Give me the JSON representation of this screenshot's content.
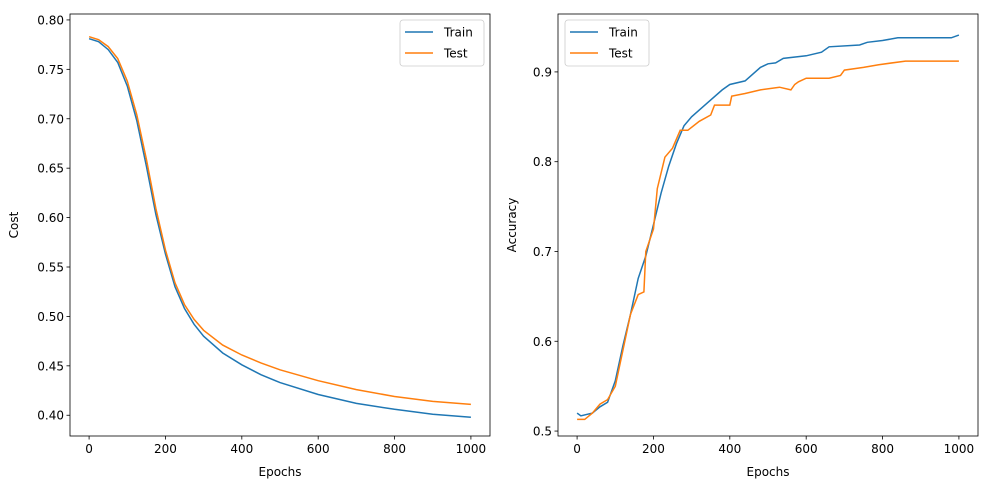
{
  "chart_data": [
    {
      "type": "line",
      "xlabel": "Epochs",
      "ylabel": "Cost",
      "xlim": [
        -50,
        1050
      ],
      "ylim": [
        0.379,
        0.806
      ],
      "xticks": [
        "0",
        "200",
        "400",
        "600",
        "800",
        "1000"
      ],
      "xtick_values": [
        0,
        200,
        400,
        600,
        800,
        1000
      ],
      "yticks": [
        "0.40",
        "0.45",
        "0.50",
        "0.55",
        "0.60",
        "0.65",
        "0.70",
        "0.75",
        "0.80"
      ],
      "ytick_values": [
        0.4,
        0.45,
        0.5,
        0.55,
        0.6,
        0.65,
        0.7,
        0.75,
        0.8
      ],
      "legend": "top-right",
      "grid": false,
      "series": [
        {
          "name": "Train",
          "color": "#1f77b4",
          "x": [
            0,
            25,
            50,
            75,
            100,
            125,
            150,
            175,
            200,
            225,
            250,
            275,
            300,
            350,
            400,
            450,
            500,
            600,
            700,
            800,
            900,
            1000
          ],
          "y": [
            0.781,
            0.778,
            0.77,
            0.757,
            0.733,
            0.698,
            0.652,
            0.603,
            0.563,
            0.53,
            0.508,
            0.492,
            0.48,
            0.463,
            0.451,
            0.441,
            0.433,
            0.421,
            0.412,
            0.406,
            0.401,
            0.398
          ]
        },
        {
          "name": "Test",
          "color": "#ff7f0e",
          "x": [
            0,
            25,
            50,
            75,
            100,
            125,
            150,
            175,
            200,
            225,
            250,
            275,
            300,
            350,
            400,
            450,
            500,
            600,
            700,
            800,
            900,
            1000
          ],
          "y": [
            0.783,
            0.78,
            0.773,
            0.761,
            0.738,
            0.704,
            0.659,
            0.609,
            0.567,
            0.534,
            0.512,
            0.497,
            0.486,
            0.471,
            0.461,
            0.453,
            0.446,
            0.435,
            0.426,
            0.419,
            0.414,
            0.411
          ]
        }
      ]
    },
    {
      "type": "line",
      "xlabel": "Epochs",
      "ylabel": "Accuracy",
      "xlim": [
        -50,
        1050
      ],
      "ylim": [
        0.4945,
        0.9645
      ],
      "xticks": [
        "0",
        "200",
        "400",
        "600",
        "800",
        "1000"
      ],
      "xtick_values": [
        0,
        200,
        400,
        600,
        800,
        1000
      ],
      "yticks": [
        "0.5",
        "0.6",
        "0.7",
        "0.8",
        "0.9"
      ],
      "ytick_values": [
        0.5,
        0.6,
        0.7,
        0.8,
        0.9
      ],
      "legend": "top-left",
      "grid": false,
      "series": [
        {
          "name": "Train",
          "color": "#1f77b4",
          "x": [
            0,
            10,
            40,
            60,
            80,
            100,
            120,
            140,
            160,
            180,
            200,
            220,
            240,
            260,
            280,
            300,
            340,
            380,
            400,
            440,
            480,
            500,
            520,
            540,
            600,
            640,
            660,
            740,
            760,
            800,
            840,
            980,
            1000
          ],
          "y": [
            0.52,
            0.517,
            0.52,
            0.527,
            0.532,
            0.556,
            0.595,
            0.63,
            0.67,
            0.695,
            0.73,
            0.765,
            0.795,
            0.82,
            0.84,
            0.85,
            0.865,
            0.88,
            0.886,
            0.89,
            0.905,
            0.909,
            0.91,
            0.915,
            0.918,
            0.922,
            0.928,
            0.93,
            0.933,
            0.935,
            0.938,
            0.938,
            0.941
          ]
        },
        {
          "name": "Test",
          "color": "#ff7f0e",
          "x": [
            0,
            20,
            40,
            60,
            80,
            100,
            120,
            140,
            160,
            175,
            180,
            200,
            210,
            230,
            250,
            270,
            290,
            320,
            350,
            360,
            400,
            405,
            440,
            480,
            530,
            560,
            570,
            580,
            600,
            660,
            690,
            700,
            750,
            790,
            860,
            1000
          ],
          "y": [
            0.513,
            0.513,
            0.52,
            0.53,
            0.535,
            0.55,
            0.59,
            0.63,
            0.652,
            0.655,
            0.7,
            0.725,
            0.77,
            0.805,
            0.815,
            0.835,
            0.835,
            0.845,
            0.852,
            0.863,
            0.863,
            0.873,
            0.876,
            0.88,
            0.883,
            0.88,
            0.886,
            0.889,
            0.893,
            0.893,
            0.896,
            0.902,
            0.905,
            0.908,
            0.912,
            0.912
          ]
        }
      ]
    }
  ]
}
